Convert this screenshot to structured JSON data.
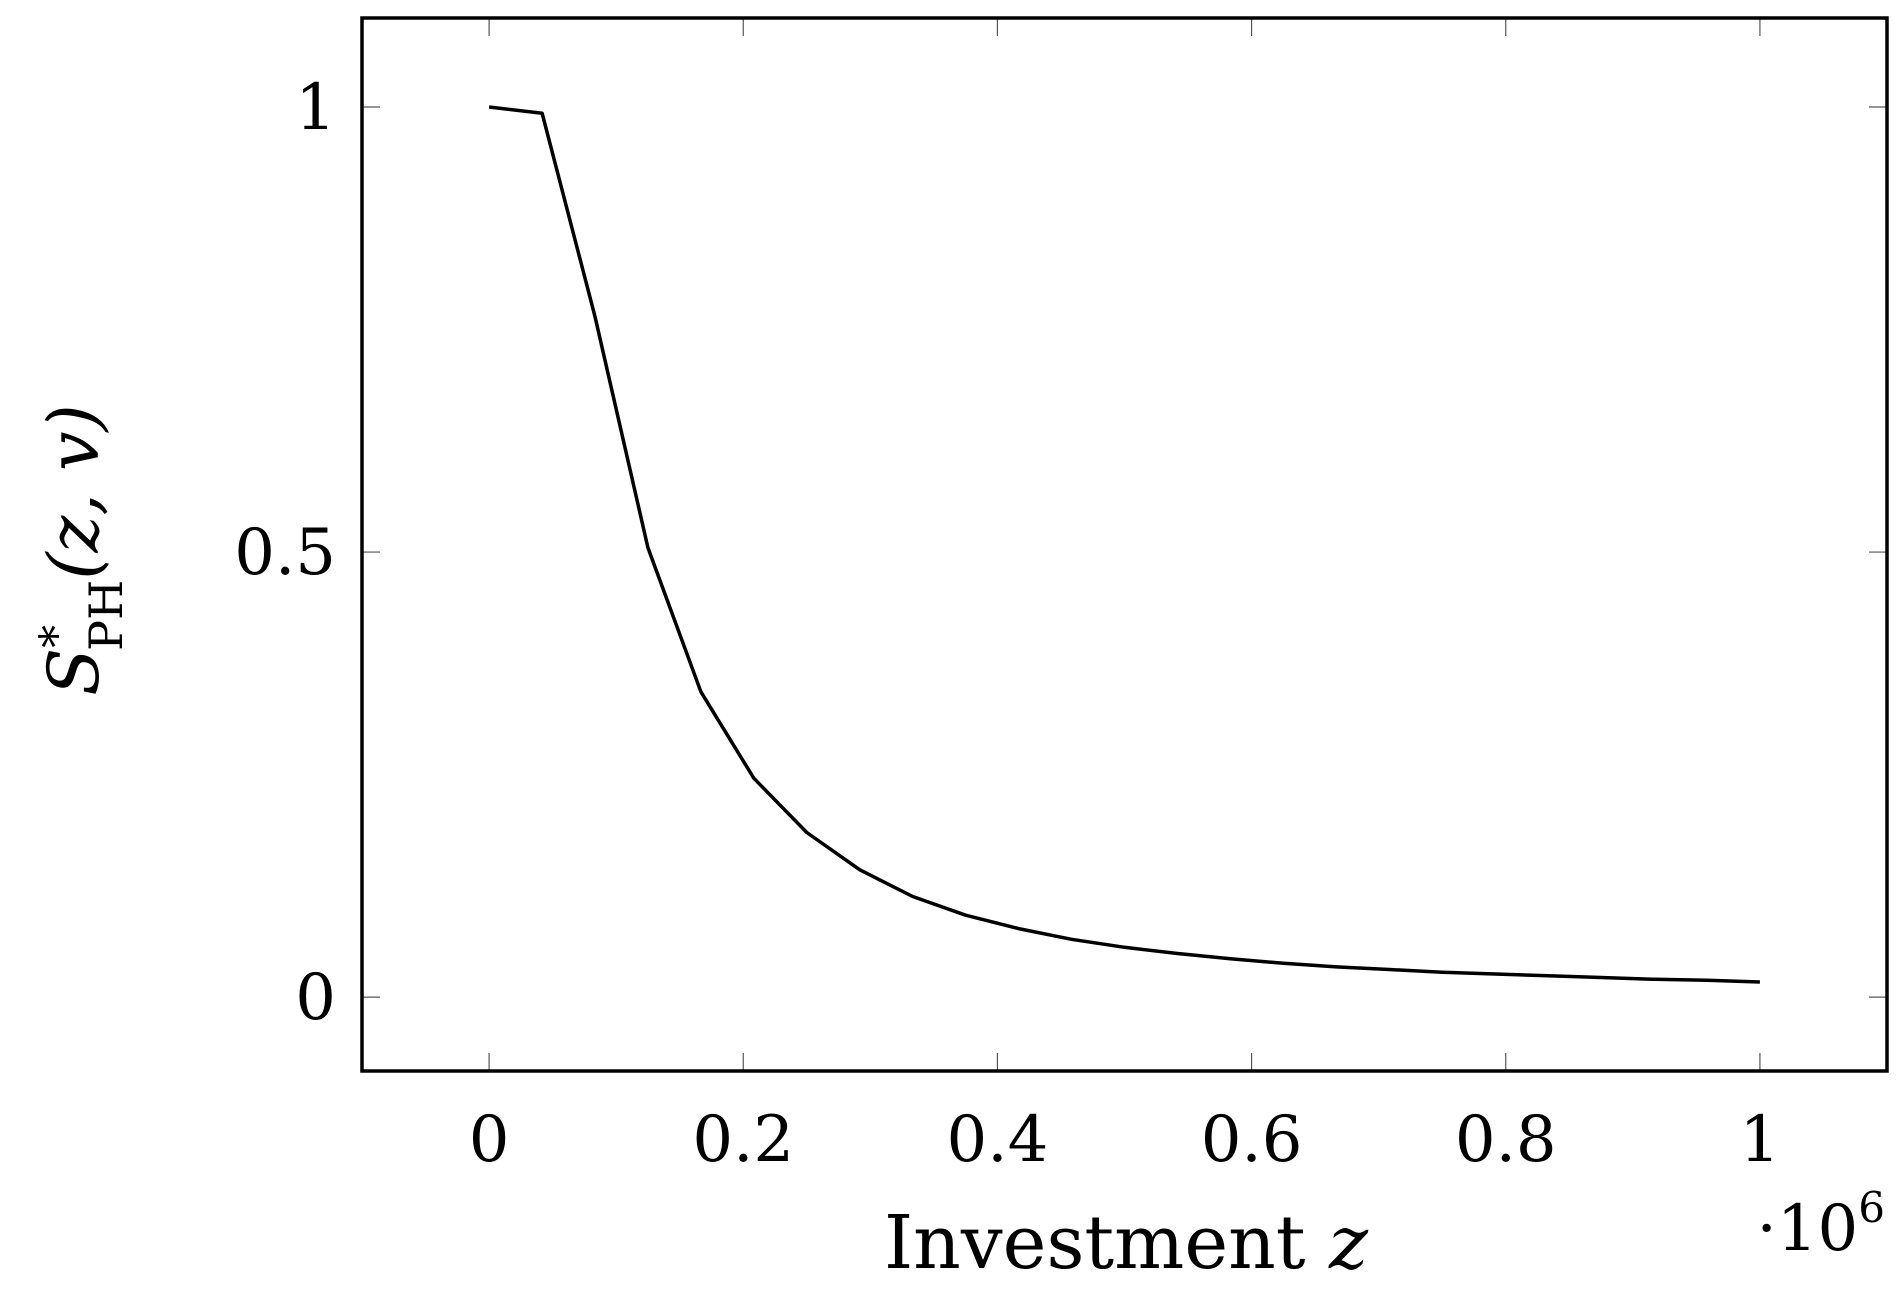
{
  "chart_data": {
    "type": "line",
    "title": "",
    "xlabel": {
      "main": "Investment ",
      "var": "z"
    },
    "ylabel": {
      "main": "S",
      "sup": "*",
      "sub": "PH",
      "args": "(z, v)"
    },
    "x_multiplier": {
      "dot": "·",
      "base": "10",
      "exp": "6"
    },
    "xlim": [
      -0.1,
      1.1
    ],
    "ylim": [
      -0.083,
      1.1
    ],
    "xticks": [
      0,
      0.2,
      0.4,
      0.6,
      0.8,
      1
    ],
    "xtick_labels": [
      "0",
      "0.2",
      "0.4",
      "0.6",
      "0.8",
      "1"
    ],
    "yticks": [
      0,
      0.5,
      1
    ],
    "ytick_labels": [
      "0",
      "0.5",
      "1"
    ],
    "grid": false,
    "series": [
      {
        "x": [
          0,
          0.0417,
          0.0833,
          0.125,
          0.1667,
          0.2083,
          0.25,
          0.2917,
          0.3333,
          0.375,
          0.4167,
          0.4583,
          0.5,
          0.5417,
          0.5833,
          0.625,
          0.6667,
          0.7083,
          0.75,
          0.7917,
          0.8333,
          0.875,
          0.9167,
          0.9583,
          1.0
        ],
        "y": [
          1.0,
          0.993,
          0.765,
          0.505,
          0.343,
          0.246,
          0.185,
          0.143,
          0.113,
          0.092,
          0.077,
          0.065,
          0.056,
          0.049,
          0.043,
          0.038,
          0.034,
          0.031,
          0.028,
          0.026,
          0.024,
          0.022,
          0.02,
          0.019,
          0.017
        ]
      }
    ]
  }
}
